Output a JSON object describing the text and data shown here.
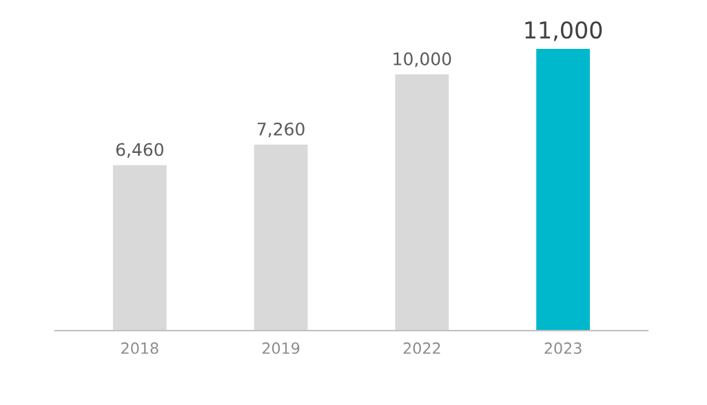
{
  "chart_data": {
    "type": "bar",
    "categories": [
      "2018",
      "2019",
      "2022",
      "2023"
    ],
    "values": [
      6460,
      7260,
      10000,
      11000
    ],
    "colors": [
      "#d9d9d9",
      "#d9d9d9",
      "#d9d9d9",
      "#00b8cc"
    ],
    "value_labels": [
      "6,460",
      "7,260",
      "10,000",
      "11,000"
    ],
    "tick_labels": "x"
  }
}
